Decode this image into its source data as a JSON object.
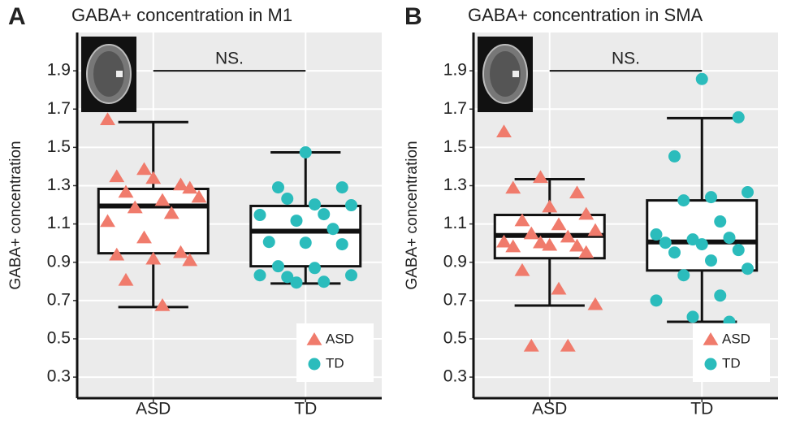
{
  "chart_data": [
    {
      "type": "box",
      "panel_label": "A",
      "title": "GABA+ concentration in M1",
      "ylabel": "GABA+ concentration",
      "categories": [
        "ASD",
        "TD"
      ],
      "annotation": "NS.",
      "ylim": [
        0.19,
        2.1
      ],
      "yticks": [
        0.3,
        0.5,
        0.7,
        0.9,
        1.1,
        1.3,
        1.5,
        1.7,
        1.9
      ],
      "grid": true,
      "legend": "lower right",
      "series": [
        {
          "name": "ASD",
          "color": "#f07b6c",
          "marker": "triangle",
          "box": {
            "whisker_low": 0.666,
            "q1": 0.947,
            "median": 1.194,
            "q3": 1.283,
            "whisker_high": 1.632
          },
          "values": [
            1.645,
            1.385,
            1.304,
            1.347,
            1.338,
            1.287,
            1.266,
            1.223,
            1.24,
            1.185,
            1.155,
            1.113,
            1.028,
            0.951,
            0.938,
            0.917,
            0.909,
            0.806,
            0.674
          ]
        },
        {
          "name": "TD",
          "color": "#2bbcbc",
          "marker": "circle",
          "box": {
            "whisker_low": 0.789,
            "q1": 0.879,
            "median": 1.062,
            "q3": 1.194,
            "whisker_high": 1.474
          },
          "values": [
            1.474,
            1.291,
            1.291,
            1.202,
            1.198,
            1.232,
            1.151,
            1.147,
            1.117,
            1.074,
            1.006,
            1.002,
            0.994,
            0.879,
            0.87,
            0.832,
            0.823,
            0.798,
            0.832,
            0.794
          ]
        }
      ]
    },
    {
      "type": "box",
      "panel_label": "B",
      "title": "GABA+ concentration in SMA",
      "ylabel": "GABA+ concentration",
      "categories": [
        "ASD",
        "TD"
      ],
      "annotation": "NS.",
      "ylim": [
        0.19,
        2.1
      ],
      "yticks": [
        0.3,
        0.5,
        0.7,
        0.9,
        1.1,
        1.3,
        1.5,
        1.7,
        1.9
      ],
      "grid": true,
      "legend": "lower right",
      "series": [
        {
          "name": "ASD",
          "color": "#f07b6c",
          "marker": "triangle",
          "box": {
            "whisker_low": 0.674,
            "q1": 0.921,
            "median": 1.04,
            "q3": 1.147,
            "whisker_high": 1.334
          },
          "values": [
            1.581,
            1.343,
            1.262,
            1.287,
            1.189,
            1.151,
            1.117,
            1.096,
            1.066,
            1.049,
            1.032,
            1.006,
            1.002,
            0.985,
            0.981,
            0.989,
            0.951,
            0.857,
            0.76,
            0.679,
            0.462,
            0.462
          ]
        },
        {
          "name": "TD",
          "color": "#2bbcbc",
          "marker": "circle",
          "box": {
            "whisker_low": 0.589,
            "q1": 0.857,
            "median": 1.006,
            "q3": 1.223,
            "whisker_high": 1.653
          },
          "values": [
            1.857,
            1.657,
            1.453,
            1.24,
            1.266,
            1.223,
            1.113,
            1.045,
            1.019,
            1.028,
            1.002,
            0.994,
            0.964,
            0.951,
            0.909,
            0.866,
            0.832,
            0.726,
            0.7,
            0.615,
            0.589
          ]
        }
      ]
    }
  ]
}
